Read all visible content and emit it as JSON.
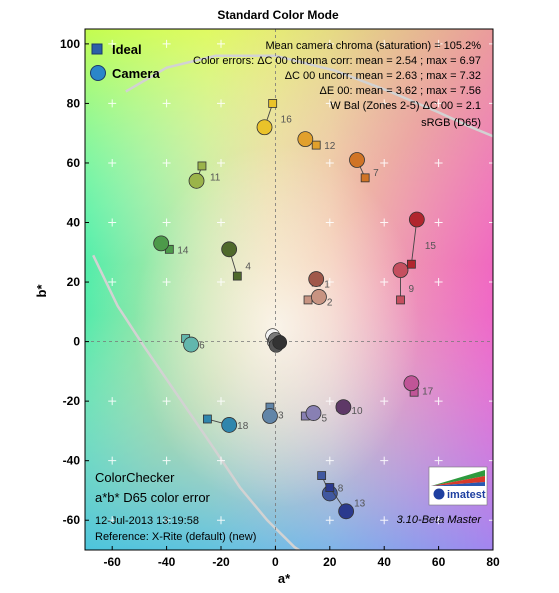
{
  "chart_data": {
    "type": "scatter",
    "title": "Standard Color Mode",
    "xlabel": "a*",
    "ylabel": "b*",
    "xlim": [
      -70,
      80
    ],
    "ylim": [
      -70,
      105
    ],
    "xticks": [
      -60,
      -40,
      -20,
      0,
      20,
      40,
      60,
      80
    ],
    "yticks": [
      -60,
      -40,
      -20,
      0,
      20,
      40,
      60,
      80,
      100
    ],
    "grid": true,
    "legend_position": "top-left",
    "legend": [
      {
        "name": "Ideal",
        "marker": "square",
        "color": "#2b5fa8"
      },
      {
        "name": "Camera",
        "marker": "circle",
        "color": "#2b86c9"
      }
    ],
    "info_lines": [
      "Mean camera chroma (saturation) = 105.2%",
      "Color errors: ΔC 00 chroma corr:  mean = 2.54 ;  max = 6.97",
      "ΔC 00 uncorr:  mean = 2.63 ;  max = 7.32",
      "ΔE 00:  mean = 3.62 ;  max = 7.56",
      "W Bal (Zones 2-5) ΔC 00 = 2.1",
      "sRGB (D65)"
    ],
    "annotations": {
      "chart_name": "ColorChecker",
      "subtitle": "a*b* D65 color error",
      "date": "12-Jul-2013 13:19:58",
      "reference": "Reference: X-Rite (default) (new)",
      "version": "3.10-Beta  Master",
      "logo_text": "imatest"
    },
    "patches": [
      {
        "id": "1",
        "ideal": [
          15,
          20
        ],
        "camera": [
          15,
          21
        ],
        "color": "#a0584a"
      },
      {
        "id": "2",
        "ideal": [
          12,
          14
        ],
        "camera": [
          16,
          15
        ],
        "color": "#c89482"
      },
      {
        "id": "3",
        "ideal": [
          -2,
          -22
        ],
        "camera": [
          -2,
          -25
        ],
        "color": "#6185a8"
      },
      {
        "id": "4",
        "ideal": [
          -14,
          22
        ],
        "camera": [
          -17,
          31
        ],
        "color": "#4f6a2b"
      },
      {
        "id": "5",
        "ideal": [
          11,
          -25
        ],
        "camera": [
          14,
          -24
        ],
        "color": "#8880b3"
      },
      {
        "id": "6",
        "ideal": [
          -33,
          1
        ],
        "camera": [
          -31,
          -1
        ],
        "color": "#62b7ad"
      },
      {
        "id": "7",
        "ideal": [
          33,
          55
        ],
        "camera": [
          30,
          61
        ],
        "color": "#d07426"
      },
      {
        "id": "8",
        "ideal": [
          17,
          -45
        ],
        "camera": [
          20,
          -51
        ],
        "color": "#4058a0"
      },
      {
        "id": "9",
        "ideal": [
          46,
          14
        ],
        "camera": [
          46,
          24
        ],
        "color": "#c54f5f"
      },
      {
        "id": "10",
        "ideal": [
          24,
          -22
        ],
        "camera": [
          25,
          -22
        ],
        "color": "#5e3867"
      },
      {
        "id": "11",
        "ideal": [
          -27,
          59
        ],
        "camera": [
          -29,
          54
        ],
        "color": "#9bb44a"
      },
      {
        "id": "12",
        "ideal": [
          15,
          66
        ],
        "camera": [
          11,
          68
        ],
        "color": "#e1a02c"
      },
      {
        "id": "13",
        "ideal": [
          20,
          -49
        ],
        "camera": [
          26,
          -57
        ],
        "color": "#2b3a8e"
      },
      {
        "id": "14",
        "ideal": [
          -39,
          31
        ],
        "camera": [
          -42,
          33
        ],
        "color": "#4d9a4a"
      },
      {
        "id": "15",
        "ideal": [
          50,
          26
        ],
        "camera": [
          52,
          41
        ],
        "color": "#b1262e"
      },
      {
        "id": "16",
        "ideal": [
          -1,
          80
        ],
        "camera": [
          -4,
          72
        ],
        "color": "#eac32a"
      },
      {
        "id": "17",
        "ideal": [
          51,
          -17
        ],
        "camera": [
          50,
          -14
        ],
        "color": "#c05597"
      },
      {
        "id": "18",
        "ideal": [
          -25,
          -26
        ],
        "camera": [
          -17,
          -28
        ],
        "color": "#2f86ad"
      }
    ],
    "neutrals": [
      {
        "a": -1,
        "b": 2,
        "color": "#f3f3f3"
      },
      {
        "a": 0,
        "b": 0,
        "color": "#c8c8c8"
      },
      {
        "a": -1,
        "b": 0,
        "color": "#a0a0a0"
      },
      {
        "a": 0,
        "b": 1,
        "color": "#7a7a7a"
      },
      {
        "a": 0,
        "b": -1,
        "color": "#555555"
      },
      {
        "a": 1,
        "b": 0,
        "color": "#333333"
      }
    ],
    "gamut_curves": [
      {
        "points": [
          [
            -67,
            29
          ],
          [
            -58,
            12
          ],
          [
            -48,
            -2
          ],
          [
            -36,
            -18
          ],
          [
            -24,
            -34
          ],
          [
            -13,
            -49
          ],
          [
            -3,
            -60
          ],
          [
            7,
            -69
          ],
          [
            12,
            -72
          ]
        ],
        "color": "#d2d2d2"
      },
      {
        "points": [
          [
            -55,
            84
          ],
          [
            -40,
            92
          ],
          [
            -22,
            96
          ],
          [
            0,
            96
          ],
          [
            22,
            91
          ],
          [
            42,
            84
          ],
          [
            60,
            77
          ],
          [
            72,
            72
          ],
          [
            80,
            69
          ]
        ],
        "color": "#d2d2d2"
      }
    ]
  }
}
